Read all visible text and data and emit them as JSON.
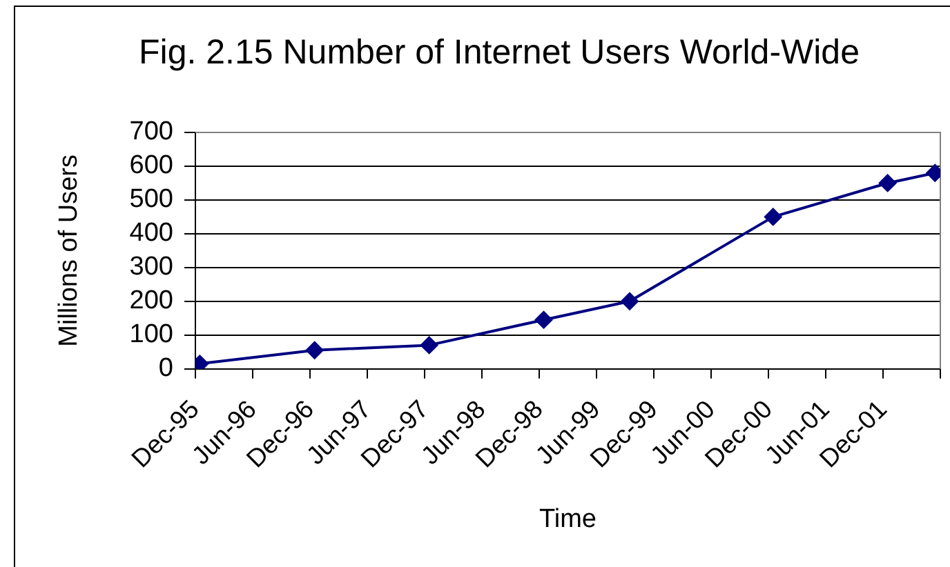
{
  "chart_data": {
    "type": "line",
    "title": "Fig. 2.15 Number of Internet Users World-Wide",
    "xlabel": "Time",
    "ylabel": "Millions of Users",
    "x": [
      "1995-12-15",
      "1996-12-15",
      "1997-12-15",
      "1998-12-15",
      "1999-09-15",
      "2000-12-15",
      "2001-12-15",
      "2002-05-15"
    ],
    "series": [
      {
        "color": "#000080",
        "values": [
          15,
          55,
          70,
          145,
          200,
          450,
          550,
          580
        ]
      }
    ],
    "xlim": [
      "1995-12-01",
      "2002-06-01"
    ],
    "xticks": [
      {
        "value": "1995-12-01",
        "label": "Dec-95"
      },
      {
        "value": "1996-06-01",
        "label": "Jun-96"
      },
      {
        "value": "1996-12-01",
        "label": "Dec-96"
      },
      {
        "value": "1997-06-01",
        "label": "Jun-97"
      },
      {
        "value": "1997-12-01",
        "label": "Dec-97"
      },
      {
        "value": "1998-06-01",
        "label": "Jun-98"
      },
      {
        "value": "1998-12-01",
        "label": "Dec-98"
      },
      {
        "value": "1999-06-01",
        "label": "Jun-99"
      },
      {
        "value": "1999-12-01",
        "label": "Dec-99"
      },
      {
        "value": "2000-06-01",
        "label": "Jun-00"
      },
      {
        "value": "2000-12-01",
        "label": "Dec-00"
      },
      {
        "value": "2001-06-01",
        "label": "Jun-01"
      },
      {
        "value": "2001-12-01",
        "label": "Dec-01"
      },
      {
        "value": "2002-06-01",
        "label": null
      }
    ],
    "ylim": [
      0,
      700
    ],
    "yticks": [
      0,
      100,
      200,
      300,
      400,
      500,
      600,
      700
    ],
    "grid": "y",
    "marker": "diamond",
    "line_style": "solid"
  }
}
